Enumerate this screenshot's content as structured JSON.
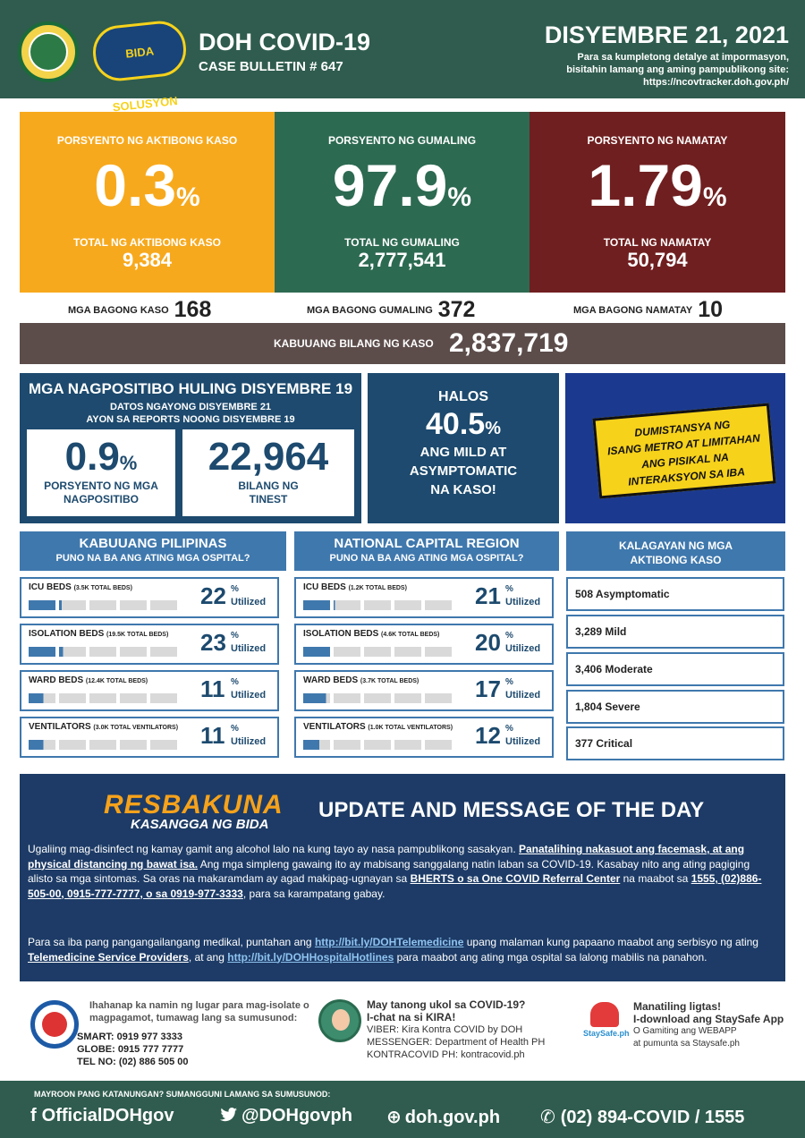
{
  "header": {
    "title": "DOH COVID-19",
    "subtitle": "CASE BULLETIN # 647",
    "date": "DISYEMBRE 21, 2021",
    "note_1": "Para sa kumpletong detalye at impormasyon,",
    "note_2": "bisitahin lamang ang aming pampublikong site:",
    "note_3": "https://ncovtracker.doh.gov.ph/",
    "logo_text": "BIDA SOLUSYON"
  },
  "stats": {
    "active": {
      "label": "PORSYENTO NG AKTIBONG KASO",
      "value": "0.3",
      "pct": "%",
      "total_label": "TOTAL NG AKTIBONG KASO",
      "total": "9,384",
      "color": "#f7a91d"
    },
    "recovered": {
      "label": "PORSYENTO NG GUMALING",
      "value": "97.9",
      "pct": "%",
      "total_label": "TOTAL NG GUMALING",
      "total": "2,777,541",
      "color": "#2d6a52"
    },
    "deaths": {
      "label": "PORSYENTO NG NAMATAY",
      "value": "1.79",
      "pct": "%",
      "total_label": "TOTAL NG NAMATAY",
      "total": "50,794",
      "color": "#701f20"
    }
  },
  "new_counts": {
    "cases_label": "MGA BAGONG KASO",
    "cases": "168",
    "recovered_label": "MGA BAGONG GUMALING",
    "recovered": "372",
    "deaths_label": "MGA BAGONG NAMATAY",
    "deaths": "10"
  },
  "total_cases": {
    "label": "KABUUANG BILANG NG KASO",
    "value": "2,837,719"
  },
  "positivity": {
    "title": "MGA NAGPOSITIBO HULING DISYEMBRE 19",
    "sub_1": "DATOS NGAYONG DISYEMBRE 21",
    "sub_2": "AYON SA REPORTS NOONG DISYEMBRE 19",
    "rate": "0.9",
    "rate_pct": "%",
    "rate_label_1": "PORSYENTO NG MGA",
    "rate_label_2": "NAGPOSITIBO",
    "tested": "22,964",
    "tested_label_1": "BILANG NG",
    "tested_label_2": "TINEST"
  },
  "mild": {
    "line_1": "HALOS",
    "value": "40.5",
    "pct": "%",
    "line_2": "ANG MILD AT",
    "line_3": "ASYMPTOMATIC",
    "line_4": "NA KASO!"
  },
  "distance_sign": {
    "line_1": "DUMISTANSYA NG",
    "line_2": "ISANG METRO AT LIMITAHAN",
    "line_3": "ANG PISIKAL NA",
    "line_4": "INTERAKSYON SA IBA"
  },
  "hospitals": {
    "ph": {
      "title": "KABUUANG PILIPINAS",
      "subtitle": "PUNO NA BA ANG ATING MGA OSPITAL?",
      "rows": [
        {
          "label": "ICU BEDS",
          "detail": "(3.5K TOTAL BEDS)",
          "value": "22",
          "fill": 0.22
        },
        {
          "label": "ISOLATION BEDS",
          "detail": "(19.5K TOTAL BEDS)",
          "value": "23",
          "fill": 0.23
        },
        {
          "label": "WARD BEDS",
          "detail": "(12.4K TOTAL BEDS)",
          "value": "11",
          "fill": 0.11
        },
        {
          "label": "VENTILATORS",
          "detail": "(3.0K TOTAL VENTILATORS)",
          "value": "11",
          "fill": 0.11
        }
      ]
    },
    "ncr": {
      "title": "NATIONAL CAPITAL REGION",
      "subtitle": "PUNO NA BA ANG ATING MGA OSPITAL?",
      "rows": [
        {
          "label": "ICU BEDS",
          "detail": "(1.2K TOTAL BEDS)",
          "value": "21",
          "fill": 0.21
        },
        {
          "label": "ISOLATION BEDS",
          "detail": "(4.6K TOTAL BEDS)",
          "value": "20",
          "fill": 0.2
        },
        {
          "label": "WARD BEDS",
          "detail": "(3.7K TOTAL BEDS)",
          "value": "17",
          "fill": 0.17
        },
        {
          "label": "VENTILATORS",
          "detail": "(1.0K TOTAL VENTILATORS)",
          "value": "12",
          "fill": 0.12
        }
      ]
    },
    "pct_sign": "%",
    "utilized": "Utilized"
  },
  "kalagayan": {
    "title_1": "KALAGAYAN NG MGA",
    "title_2": "AKTIBONG KASO",
    "items": [
      "508 Asymptomatic",
      "3,289 Mild",
      "3,406 Moderate",
      "1,804 Severe",
      "377 Critical"
    ]
  },
  "message": {
    "logo_1": "RESBAKUNA",
    "logo_2": "KASANGGA NG BIDA",
    "title": "UPDATE AND MESSAGE OF THE DAY",
    "p1_a": "Ugaliing mag-disinfect ng kamay gamit ang alcohol lalo na kung tayo ay nasa pampublikong sasakyan. ",
    "p1_b": "Panatalihing nakasuot ang facemask, at ang physical distancing ng bawat isa.",
    "p1_c": " Ang mga simpleng gawaing ito ay mabisang sanggalang natin laban sa COVID-19.  Kasabay nito ang ating pagiging alisto sa mga sintomas. Sa oras na makaramdam ay agad makipag-ugnayan sa ",
    "p1_d": "BHERTS o sa One COVID Referral Center",
    "p1_e": " na maabot sa ",
    "p1_f": "1555, (02)886-505-00, 0915-777-7777, o sa 0919-977-3333",
    "p1_g": ", para sa karampatang gabay.",
    "p2_a": "Para sa iba pang pangangailangang medikal, puntahan ang ",
    "p2_b": "http://bit.ly/DOHTelemedicine",
    "p2_c": " upang malaman kung papaano maabot ang serbisyo ng ating ",
    "p2_d": "Telemedicine Service Providers",
    "p2_e": ", at ang ",
    "p2_f": "http://bit.ly/DOHHospitalHotlines",
    "p2_g": " para maabot ang ating mga ospital sa lalong mabilis na panahon."
  },
  "contact": {
    "iso_1": "Ihahanap ka namin ng lugar para mag-isolate o",
    "iso_2": "magpagamot, tumawag lang sa sumusunod:",
    "smart": "SMART: 0919 977 3333",
    "globe": "GLOBE: 0915 777 7777",
    "tel": "TEL NO: (02) 886 505 00",
    "kira_1": "May tanong ukol sa COVID-19?",
    "kira_2": "I-chat na si KIRA!",
    "viber": "VIBER: Kira Kontra COVID by DOH",
    "messenger": "MESSENGER: Department of Health PH",
    "kontra": "KONTRACOVID PH: kontracovid.ph",
    "stay_1": "Manatiling ligtas!",
    "stay_2": "I-download ang StaySafe App",
    "stay_3": "O Gamiting ang WEBAPP",
    "stay_4": "at pumunta sa Staysafe.ph",
    "stay_logo": "StaySafe.ph"
  },
  "footer": {
    "question": "MAYROON PANG KATANUNGAN? SUMANGGUNI LAMANG SA SUMUSUNOD:",
    "facebook": "OfficialDOHgov",
    "twitter": "@DOHgovph",
    "web": "doh.gov.ph",
    "phone": "(02) 894-COVID  /  1555"
  }
}
